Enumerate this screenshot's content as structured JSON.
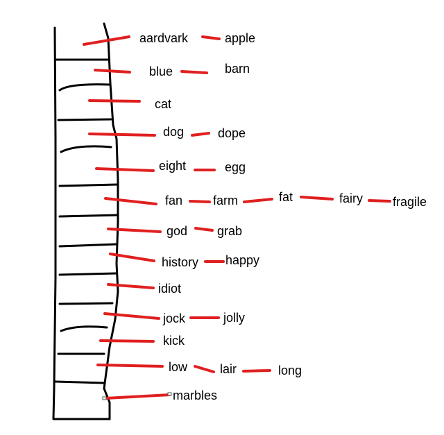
{
  "colors": {
    "ink": "#000000",
    "connector": "#e02020",
    "background": "#ffffff"
  },
  "rows": [
    {
      "words": [
        "aardvark",
        "apple"
      ]
    },
    {
      "words": [
        "blue",
        "barn"
      ]
    },
    {
      "words": [
        "cat"
      ]
    },
    {
      "words": [
        "dog",
        "dope"
      ]
    },
    {
      "words": [
        "eight",
        "egg"
      ]
    },
    {
      "words": [
        "fan",
        "farm",
        "fat",
        "fairy",
        "fragile"
      ]
    },
    {
      "words": [
        "god",
        "grab"
      ]
    },
    {
      "words": [
        "history",
        "happy"
      ]
    },
    {
      "words": [
        "idiot"
      ]
    },
    {
      "words": [
        "jock",
        "jolly"
      ]
    },
    {
      "words": [
        "kick"
      ]
    },
    {
      "words": [
        "low",
        "lair",
        "long"
      ]
    },
    {
      "words": [
        "marbles"
      ]
    }
  ]
}
